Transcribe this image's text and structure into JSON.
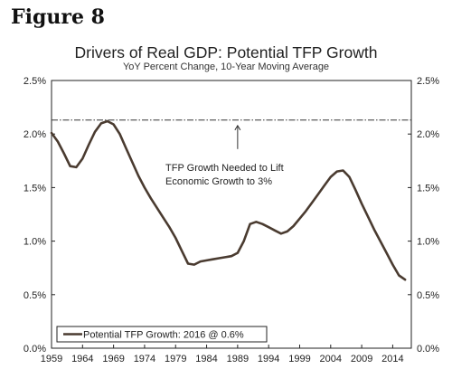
{
  "figure_label": "Figure 8",
  "chart_data": {
    "type": "line",
    "title": "Drivers of Real GDP: Potential TFP Growth",
    "subtitle": "YoY Percent Change, 10-Year Moving Average",
    "xlabel": "",
    "ylabel": "",
    "xlim": [
      1959,
      2017
    ],
    "ylim": [
      0,
      2.5
    ],
    "x_ticks": [
      1959,
      1964,
      1969,
      1974,
      1979,
      1984,
      1989,
      1994,
      1999,
      2004,
      2009,
      2014
    ],
    "y_ticks": [
      "0.0%",
      "0.5%",
      "1.0%",
      "1.5%",
      "2.0%",
      "2.5%"
    ],
    "y_tick_values": [
      0,
      0.5,
      1.0,
      1.5,
      2.0,
      2.5
    ],
    "grid": false,
    "legend_position": "bottom-left",
    "series": [
      {
        "name": "Potential TFP Growth: 2016 @ 0.6%",
        "color": "#4a3b30",
        "points": [
          [
            1959,
            2.01
          ],
          [
            1960,
            1.93
          ],
          [
            1961,
            1.82
          ],
          [
            1962,
            1.7
          ],
          [
            1963,
            1.69
          ],
          [
            1964,
            1.77
          ],
          [
            1965,
            1.9
          ],
          [
            1966,
            2.02
          ],
          [
            1967,
            2.1
          ],
          [
            1968,
            2.12
          ],
          [
            1969,
            2.09
          ],
          [
            1970,
            2.0
          ],
          [
            1971,
            1.87
          ],
          [
            1972,
            1.74
          ],
          [
            1973,
            1.61
          ],
          [
            1974,
            1.5
          ],
          [
            1975,
            1.4
          ],
          [
            1976,
            1.31
          ],
          [
            1977,
            1.22
          ],
          [
            1978,
            1.13
          ],
          [
            1979,
            1.03
          ],
          [
            1980,
            0.91
          ],
          [
            1981,
            0.79
          ],
          [
            1982,
            0.78
          ],
          [
            1983,
            0.81
          ],
          [
            1984,
            0.82
          ],
          [
            1985,
            0.83
          ],
          [
            1986,
            0.84
          ],
          [
            1987,
            0.85
          ],
          [
            1988,
            0.86
          ],
          [
            1989,
            0.89
          ],
          [
            1990,
            1.0
          ],
          [
            1991,
            1.16
          ],
          [
            1992,
            1.18
          ],
          [
            1993,
            1.16
          ],
          [
            1994,
            1.13
          ],
          [
            1995,
            1.1
          ],
          [
            1996,
            1.07
          ],
          [
            1997,
            1.09
          ],
          [
            1998,
            1.14
          ],
          [
            1999,
            1.21
          ],
          [
            2000,
            1.28
          ],
          [
            2001,
            1.36
          ],
          [
            2002,
            1.44
          ],
          [
            2003,
            1.52
          ],
          [
            2004,
            1.6
          ],
          [
            2005,
            1.65
          ],
          [
            2006,
            1.66
          ],
          [
            2007,
            1.6
          ],
          [
            2008,
            1.48
          ],
          [
            2009,
            1.35
          ],
          [
            2010,
            1.23
          ],
          [
            2011,
            1.11
          ],
          [
            2012,
            1.0
          ],
          [
            2013,
            0.89
          ],
          [
            2014,
            0.78
          ],
          [
            2015,
            0.68
          ],
          [
            2016,
            0.64
          ]
        ]
      }
    ],
    "reference_line": {
      "y": 2.13,
      "style": "dash-dot"
    },
    "annotation": {
      "lines": [
        "TFP Growth Needed to Lift",
        "Economic Growth to 3%"
      ],
      "arrow_x": 1989
    }
  }
}
